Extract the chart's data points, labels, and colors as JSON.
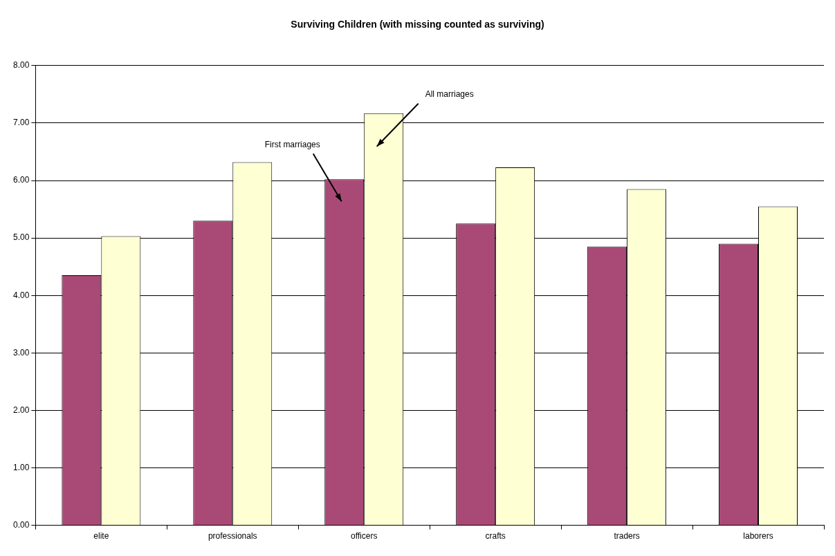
{
  "chart_data": {
    "type": "bar",
    "title": "Surviving Children (with missing counted as surviving)",
    "categories": [
      "elite",
      "professionals",
      "officers",
      "crafts",
      "traders",
      "laborers"
    ],
    "series": [
      {
        "name": "First marriages",
        "color": "#a94a76",
        "values": [
          4.35,
          5.3,
          6.02,
          5.25,
          4.85,
          4.9
        ]
      },
      {
        "name": "All marriages",
        "color": "#ffffd4",
        "values": [
          5.03,
          6.32,
          7.17,
          6.23,
          5.85,
          5.55
        ]
      }
    ],
    "ylim": [
      0,
      8
    ],
    "yticks": [
      {
        "value": 0,
        "label": "0.00"
      },
      {
        "value": 1,
        "label": "1.00"
      },
      {
        "value": 2,
        "label": "2.00"
      },
      {
        "value": 3,
        "label": "3.00"
      },
      {
        "value": 4,
        "label": "4.00"
      },
      {
        "value": 5,
        "label": "5.00"
      },
      {
        "value": 6,
        "label": "6.00"
      },
      {
        "value": 7,
        "label": "7.00"
      },
      {
        "value": 8,
        "label": "8.00"
      }
    ],
    "grid": "y",
    "legend": false
  }
}
